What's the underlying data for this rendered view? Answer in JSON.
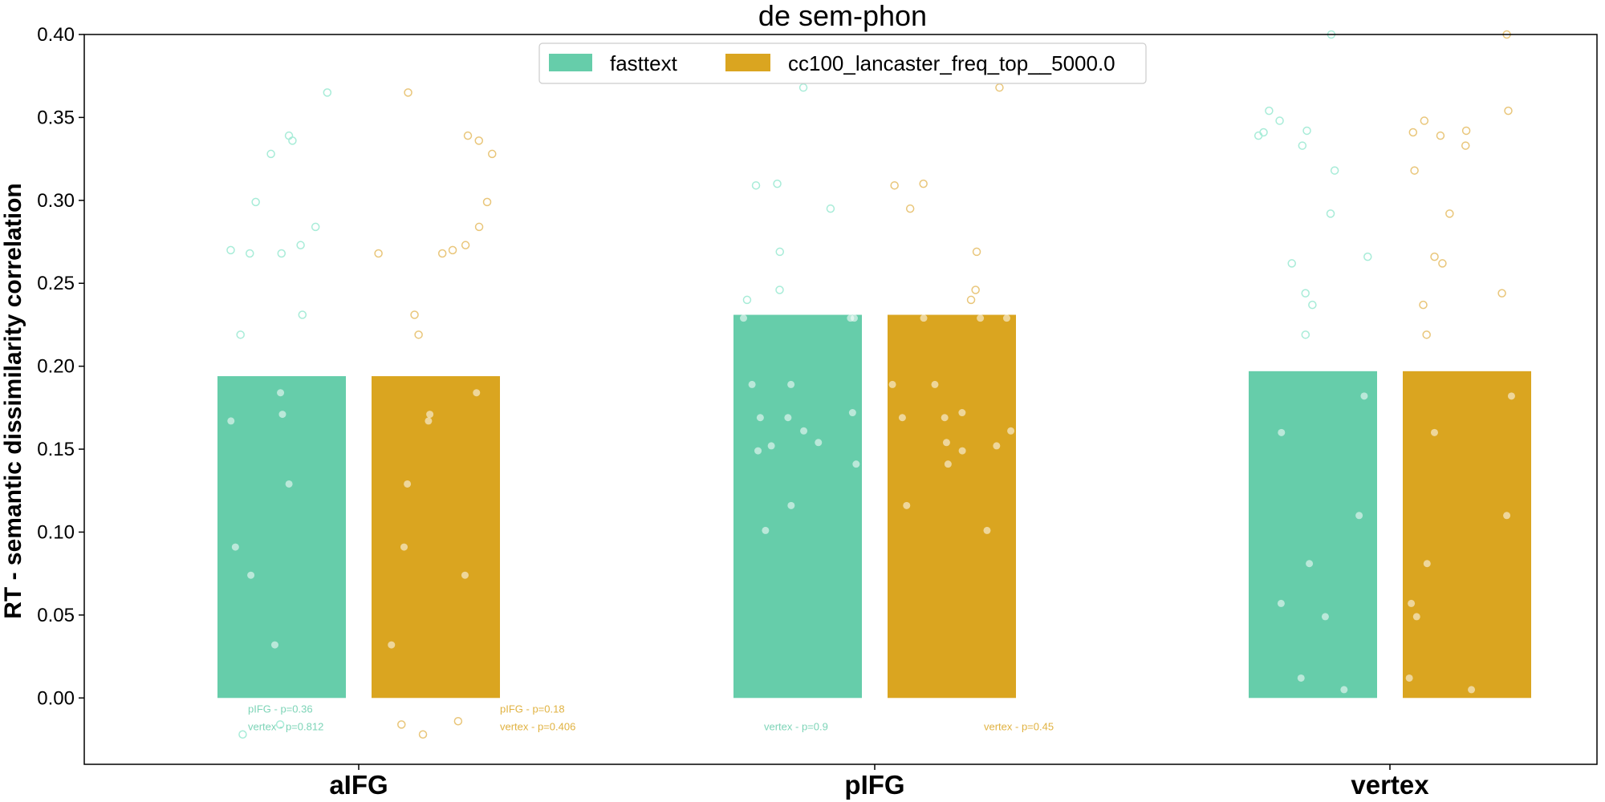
{
  "chart_data": {
    "type": "bar",
    "title": "de sem-phon",
    "xlabel": "",
    "ylabel": "RT - semantic dissimilarity correlation",
    "ylim": [
      -0.04,
      0.4
    ],
    "yticks": [
      0.0,
      0.05,
      0.1,
      0.15,
      0.2,
      0.25,
      0.3,
      0.35,
      0.4
    ],
    "ytick_labels": [
      "0.00",
      "0.05",
      "0.10",
      "0.15",
      "0.20",
      "0.25",
      "0.30",
      "0.35",
      "0.40"
    ],
    "categories": [
      "aIFG",
      "pIFG",
      "vertex"
    ],
    "legend_position": "top-center",
    "series": [
      {
        "name": "fasttext",
        "color": "#66cdaa",
        "values": [
          0.194,
          0.231,
          0.197
        ],
        "points_filled": [
          [
            0.184,
            0.129,
            0.091,
            0.074,
            0.032,
            0.171,
            0.167
          ],
          [
            0.229,
            0.229,
            0.229,
            0.189,
            0.189,
            0.172,
            0.169,
            0.169,
            0.161,
            0.154,
            0.152,
            0.149,
            0.141,
            0.116,
            0.101
          ],
          [
            0.182,
            0.16,
            0.11,
            0.081,
            0.057,
            0.049,
            0.012,
            0.005
          ]
        ],
        "points_open": [
          [
            0.365,
            0.336,
            0.328,
            0.299,
            0.284,
            0.273,
            0.27,
            0.268,
            0.268,
            0.231,
            0.219,
            0.339,
            -0.016,
            -0.022
          ],
          [
            0.368,
            0.31,
            0.309,
            0.295,
            0.269,
            0.246,
            0.24
          ],
          [
            0.4,
            0.354,
            0.348,
            0.342,
            0.341,
            0.339,
            0.333,
            0.318,
            0.292,
            0.266,
            0.262,
            0.244,
            0.237,
            0.219
          ]
        ],
        "annotations": [
          [
            "pIFG - p=0.36",
            "vertex - p=0.812"
          ],
          [
            "",
            "vertex - p=0.9"
          ],
          []
        ]
      },
      {
        "name": "cc100_lancaster_freq_top__5000.0",
        "color": "#daa520",
        "values": [
          0.194,
          0.231,
          0.197
        ],
        "points_filled": [
          [
            0.184,
            0.171,
            0.167,
            0.129,
            0.091,
            0.074,
            0.032
          ],
          [
            0.229,
            0.229,
            0.229,
            0.189,
            0.189,
            0.172,
            0.169,
            0.169,
            0.161,
            0.154,
            0.152,
            0.149,
            0.141,
            0.116,
            0.101
          ],
          [
            0.182,
            0.16,
            0.11,
            0.081,
            0.057,
            0.049,
            0.012,
            0.005
          ]
        ],
        "points_open": [
          [
            0.365,
            0.339,
            0.336,
            0.328,
            0.299,
            0.284,
            0.273,
            0.27,
            0.268,
            0.268,
            0.231,
            0.219,
            -0.016,
            -0.022,
            -0.014
          ],
          [
            0.368,
            0.31,
            0.309,
            0.295,
            0.269,
            0.246,
            0.24
          ],
          [
            0.4,
            0.354,
            0.348,
            0.342,
            0.341,
            0.339,
            0.333,
            0.318,
            0.292,
            0.266,
            0.262,
            0.244,
            0.237,
            0.219
          ]
        ],
        "annotations": [
          [
            "pIFG - p=0.18",
            "vertex - p=0.406"
          ],
          [
            "",
            "vertex - p=0.45"
          ],
          []
        ]
      }
    ]
  }
}
